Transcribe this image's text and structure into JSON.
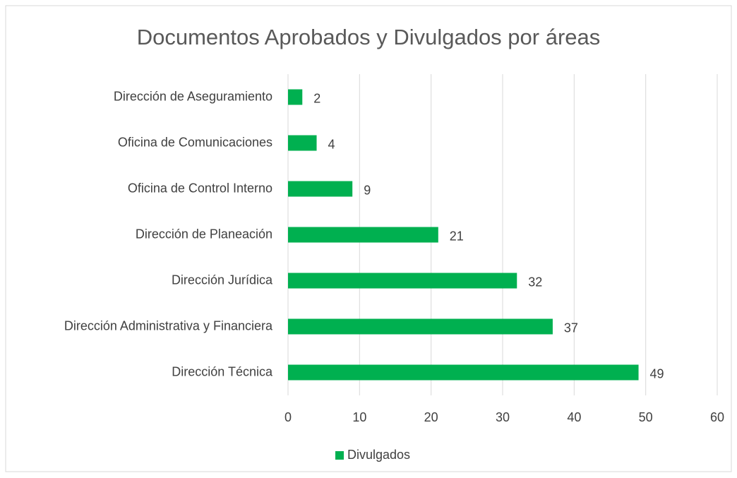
{
  "chart_data": {
    "type": "bar",
    "orientation": "horizontal",
    "title": "Documentos Aprobados y Divulgados por áreas",
    "categories": [
      "Dirección de Aseguramiento",
      "Oficina de Comunicaciones",
      "Oficina de Control Interno",
      "Dirección de Planeación",
      "Dirección Jurídica",
      "Dirección Administrativa y Financiera",
      "Dirección Técnica"
    ],
    "series": [
      {
        "name": "Divulgados",
        "color": "#00b050",
        "values": [
          2,
          4,
          9,
          21,
          32,
          37,
          49
        ]
      }
    ],
    "xlim": [
      0,
      60
    ],
    "xticks": [
      0,
      10,
      20,
      30,
      40,
      50,
      60
    ],
    "grid": true,
    "legend": "bottom",
    "data_labels": true
  }
}
